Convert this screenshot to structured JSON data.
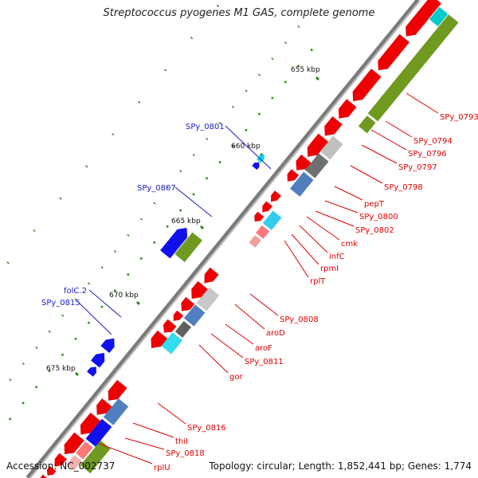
{
  "title": "Streptococcus pyogenes M1 GAS, complete genome",
  "footer": {
    "accession": "Accession: NC_002737",
    "topology": "Topology: circular; Length: 1,852,441 bp; Genes: 1,774"
  },
  "colors": {
    "backbone": "#888888",
    "label_forward": "#1a1acc",
    "label_reverse": "#dd0000",
    "tick": "#2a8a1a",
    "kbp_label": "#111111"
  },
  "kbp_ticks": [
    {
      "label": "655 kbp"
    },
    {
      "label": "660 kbp"
    },
    {
      "label": "665 kbp"
    },
    {
      "label": "670 kbp"
    },
    {
      "label": "675 kbp"
    }
  ],
  "gene_labels_forward": [
    {
      "text": "SPy_0801"
    },
    {
      "text": "SPy_0807"
    },
    {
      "text": "folC.2"
    },
    {
      "text": "SPy_0815"
    }
  ],
  "gene_labels_reverse": [
    {
      "text": "SPy_0793"
    },
    {
      "text": "SPy_0794"
    },
    {
      "text": "SPy_0796"
    },
    {
      "text": "SPy_0797"
    },
    {
      "text": "SPy_0798"
    },
    {
      "text": "pepT"
    },
    {
      "text": "SPy_0800"
    },
    {
      "text": "SPy_0802"
    },
    {
      "text": "cmk"
    },
    {
      "text": "infC"
    },
    {
      "text": "rpmI"
    },
    {
      "text": "rplT"
    },
    {
      "text": "SPy_0808"
    },
    {
      "text": "aroD"
    },
    {
      "text": "aroF"
    },
    {
      "text": "SPy_0811"
    },
    {
      "text": "gor"
    },
    {
      "text": "SPy_0816"
    },
    {
      "text": "thiI"
    },
    {
      "text": "SPy_0818"
    },
    {
      "text": "rplU"
    }
  ]
}
